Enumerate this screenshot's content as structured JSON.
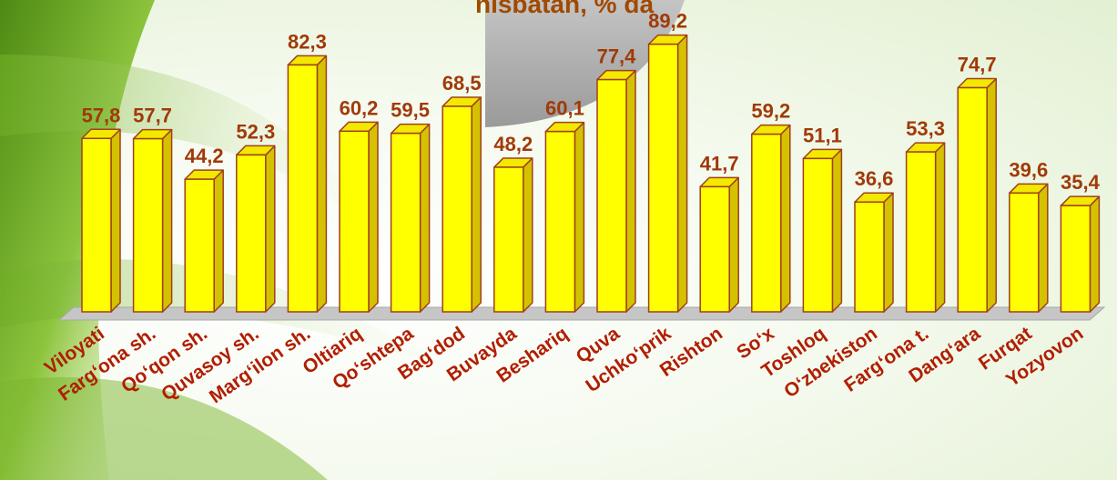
{
  "chart_data": {
    "type": "bar",
    "title": "nisbatan, % da",
    "categories": [
      "Viloyati",
      "Farg‘ona sh.",
      "Qo‘qon sh.",
      "Quvasoy sh.",
      "Marg‘ilon sh.",
      "Oltiariq",
      "Qo‘shtepa",
      "Bag‘dod",
      "Buvayda",
      "Beshariq",
      "Quva",
      "Uchko‘prik",
      "Rishton",
      "So‘x",
      "Toshloq",
      "O‘zbekiston",
      "Farg‘ona t.",
      "Dang‘ara",
      "Furqat",
      "Yozyovon"
    ],
    "values": [
      57.8,
      57.7,
      44.2,
      52.3,
      82.3,
      60.2,
      59.5,
      68.5,
      48.2,
      60.1,
      77.4,
      89.2,
      41.7,
      59.2,
      51.1,
      36.6,
      53.3,
      74.7,
      39.6,
      35.4
    ],
    "value_labels": [
      "57,8",
      "57,7",
      "44,2",
      "52,3",
      "82,3",
      "60,2",
      "59,5",
      "68,5",
      "48,2",
      "60,1",
      "77,4",
      "89,2",
      "41,7",
      "59,2",
      "51,1",
      "36,6",
      "53,3",
      "74,7",
      "39,6",
      "35,4"
    ],
    "ylim": [
      0,
      100
    ],
    "grid": false,
    "legend": "none",
    "colors": {
      "bar_front": "#ffff00",
      "bar_side": "#d4c200",
      "bar_top": "#f3e800",
      "bar_outline": "#a0401c",
      "value_label": "#a03a08",
      "category_label": "#b01e00",
      "title": "#a04a00",
      "floor": "#c6c6c6"
    }
  }
}
